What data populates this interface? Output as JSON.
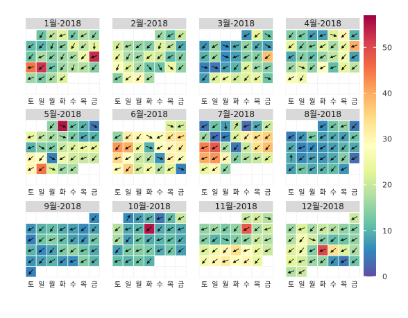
{
  "chart_data": {
    "type": "heatmap",
    "description_kind": "calendar heatmap with wind-direction arrows",
    "weekday_labels": [
      "토",
      "일",
      "월",
      "화",
      "수",
      "목",
      "금"
    ],
    "legend": {
      "min": 0,
      "max": 57,
      "ticks": [
        0,
        10,
        20,
        30,
        40,
        50
      ],
      "placement": "right",
      "palette": [
        "#5E4FA2",
        "#3288BD",
        "#66C2A5",
        "#ABDDA4",
        "#E6F598",
        "#FFFFBF",
        "#FEE08B",
        "#FDAE61",
        "#F46D43",
        "#D53E4F",
        "#9E0142"
      ]
    },
    "months": [
      {
        "label": "1월-2018",
        "first_weekday": 1,
        "values": [
          12,
          19,
          22,
          13,
          18,
          15,
          11,
          10,
          13,
          14,
          23,
          19,
          23,
          12,
          17,
          14,
          16,
          17,
          25,
          53,
          45,
          52,
          12,
          16,
          18,
          18,
          14,
          16,
          13,
          17,
          22
        ],
        "angles": [
          120,
          140,
          160,
          130,
          150,
          125,
          145,
          135,
          110,
          150,
          120,
          140,
          90,
          130,
          155,
          140,
          120,
          150,
          135,
          160,
          170,
          140,
          150,
          125,
          110,
          145,
          130,
          160,
          150,
          140,
          135
        ]
      },
      {
        "label": "2월-2018",
        "first_weekday": 4,
        "values": [
          16,
          12,
          20,
          21,
          17,
          15,
          14,
          22,
          19,
          9,
          24,
          17,
          16,
          22,
          20,
          11,
          14,
          28,
          22,
          17,
          12,
          12,
          24,
          15,
          14,
          26,
          30,
          17
        ],
        "angles": [
          130,
          150,
          140,
          120,
          160,
          145,
          135,
          110,
          150,
          140,
          130,
          120,
          155,
          140,
          135,
          150,
          125,
          110,
          140,
          130,
          50,
          60,
          40,
          135,
          150,
          140,
          130,
          145
        ]
      },
      {
        "label": "3월-2018",
        "first_weekday": 4,
        "values": [
          7,
          23,
          12,
          7,
          15,
          6,
          9,
          15,
          9,
          8,
          10,
          16,
          6,
          8,
          14,
          14,
          38,
          5,
          4,
          8,
          10,
          22,
          16,
          14,
          8,
          22,
          25,
          21,
          22,
          24,
          12
        ],
        "angles": [
          150,
          140,
          30,
          130,
          150,
          20,
          160,
          140,
          130,
          30,
          150,
          140,
          20,
          160,
          150,
          130,
          140,
          10,
          20,
          150,
          130,
          140,
          160,
          150,
          130,
          140,
          150,
          140,
          130,
          145,
          20
        ]
      },
      {
        "label": "4월-2018",
        "first_weekday": 0,
        "values": [
          14,
          13,
          8,
          8,
          22,
          30,
          10,
          23,
          14,
          14,
          22,
          17,
          24,
          40,
          9,
          14,
          11,
          16,
          19,
          26,
          8,
          16,
          21,
          15,
          28,
          11,
          23,
          19,
          27,
          25
        ],
        "angles": [
          130,
          150,
          140,
          160,
          20,
          135,
          150,
          140,
          130,
          160,
          150,
          140,
          135,
          160,
          150,
          120,
          140,
          150,
          160,
          130,
          150,
          140,
          20,
          135,
          150,
          160,
          130,
          140,
          150,
          120
        ]
      },
      {
        "label": "5월-2018",
        "first_weekday": 2,
        "values": [
          15,
          55,
          12,
          10,
          4,
          24,
          19,
          17,
          16,
          13,
          9,
          10,
          10,
          14,
          13,
          20,
          22,
          24,
          23,
          30,
          28,
          5,
          25,
          21,
          20,
          20,
          30,
          45,
          22,
          16,
          17
        ],
        "angles": [
          130,
          20,
          150,
          140,
          30,
          160,
          150,
          140,
          20,
          130,
          150,
          140,
          160,
          30,
          150,
          140,
          130,
          160,
          150,
          140,
          130,
          30,
          150,
          140,
          160,
          130,
          150,
          140,
          20,
          150,
          140
        ]
      },
      {
        "label": "6월-2018",
        "first_weekday": 5,
        "values": [
          22,
          21,
          15,
          32,
          30,
          29,
          27,
          33,
          34,
          42,
          40,
          24,
          10,
          28,
          30,
          32,
          35,
          28,
          20,
          18,
          7,
          31,
          27,
          29,
          36,
          21,
          25,
          18,
          23,
          5
        ],
        "angles": [
          20,
          160,
          150,
          140,
          130,
          30,
          150,
          140,
          160,
          130,
          150,
          140,
          20,
          150,
          140,
          130,
          160,
          150,
          140,
          130,
          20,
          150,
          140,
          160,
          130,
          150,
          140,
          135,
          150,
          20
        ]
      },
      {
        "label": "7월-2018",
        "first_weekday": 0,
        "values": [
          4,
          12,
          8,
          19,
          3,
          9,
          20,
          16,
          3,
          5,
          22,
          32,
          34,
          36,
          44,
          48,
          17,
          4,
          20,
          34,
          38,
          40,
          42,
          30,
          14,
          18,
          20,
          22,
          24,
          30,
          15
        ],
        "angles": [
          150,
          140,
          80,
          300,
          160,
          150,
          140,
          130,
          150,
          160,
          140,
          130,
          150,
          140,
          160,
          150,
          140,
          130,
          150,
          140,
          130,
          160,
          150,
          140,
          130,
          150,
          160,
          140,
          150,
          140,
          130
        ]
      },
      {
        "label": "8월-2018",
        "first_weekday": 3,
        "values": [
          6,
          12,
          15,
          4,
          5,
          7,
          13,
          8,
          9,
          8,
          12,
          9,
          5,
          6,
          7,
          8,
          10,
          9,
          9,
          6,
          8,
          7,
          9,
          14,
          3,
          8,
          12,
          9,
          10,
          11,
          7
        ],
        "angles": [
          150,
          140,
          160,
          130,
          150,
          140,
          160,
          150,
          140,
          130,
          150,
          140,
          160,
          130,
          150,
          140,
          130,
          150,
          270,
          140,
          160,
          150,
          140,
          130,
          150,
          140,
          160,
          150,
          140,
          130,
          150
        ]
      },
      {
        "label": "9월-2018",
        "first_weekday": 6,
        "values": [
          6,
          7,
          10,
          11,
          9,
          8,
          6,
          8,
          5,
          12,
          14,
          11,
          8,
          7,
          12,
          10,
          6,
          8,
          13,
          15,
          12,
          9,
          7,
          8,
          10,
          7,
          6,
          14,
          10,
          5
        ],
        "angles": [
          130,
          150,
          140,
          120,
          150,
          160,
          140,
          130,
          150,
          140,
          160,
          150,
          140,
          130,
          150,
          160,
          140,
          130,
          150,
          140,
          160,
          150,
          140,
          130,
          150,
          140,
          160,
          150,
          140,
          130
        ]
      },
      {
        "label": "10월-2018",
        "first_weekday": 1,
        "values": [
          6,
          8,
          10,
          4,
          11,
          20,
          18,
          9,
          10,
          55,
          9,
          10,
          9,
          17,
          8,
          12,
          9,
          10,
          11,
          9,
          8,
          13,
          14,
          13,
          9,
          12,
          8,
          11,
          10,
          12,
          10
        ],
        "angles": [
          300,
          140,
          150,
          160,
          130,
          150,
          140,
          160,
          150,
          140,
          130,
          150,
          160,
          140,
          130,
          150,
          140,
          160,
          150,
          140,
          130,
          150,
          160,
          140,
          150,
          130,
          140,
          160,
          150,
          140,
          130
        ]
      },
      {
        "label": "11월-2018",
        "first_weekday": 4,
        "values": [
          20,
          21,
          18,
          15,
          16,
          13,
          15,
          48,
          17,
          20,
          14,
          10,
          12,
          14,
          15,
          20,
          18,
          22,
          25,
          30,
          34,
          28,
          24,
          20,
          26,
          30,
          32,
          28,
          30,
          24
        ],
        "angles": [
          150,
          140,
          20,
          160,
          150,
          140,
          130,
          150,
          140,
          160,
          150,
          140,
          20,
          130,
          150,
          140,
          160,
          150,
          140,
          130,
          150,
          160,
          140,
          150,
          130,
          140,
          160,
          150,
          140,
          130
        ]
      },
      {
        "label": "12월-2018",
        "first_weekday": 6,
        "values": [
          20,
          16,
          22,
          17,
          20,
          18,
          15,
          14,
          18,
          26,
          21,
          14,
          11,
          12,
          15,
          22,
          25,
          14,
          50,
          34,
          22,
          17,
          23,
          21,
          16,
          15,
          7,
          4,
          12,
          18,
          20
        ],
        "angles": [
          150,
          140,
          160,
          130,
          150,
          140,
          160,
          150,
          140,
          130,
          20,
          150,
          140,
          160,
          150,
          140,
          130,
          150,
          160,
          140,
          150,
          130,
          140,
          160,
          150,
          140,
          130,
          150,
          140,
          160,
          150
        ]
      }
    ]
  }
}
